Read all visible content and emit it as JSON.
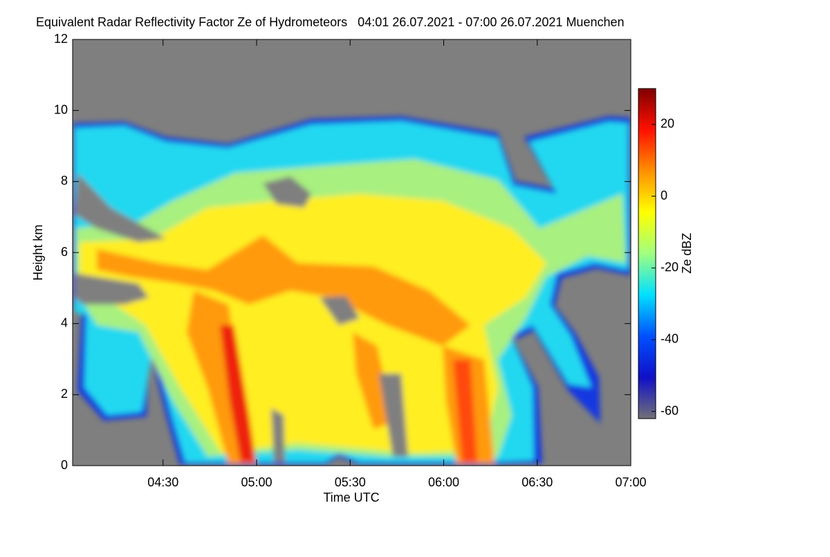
{
  "chart_data": {
    "type": "heatmap",
    "title": "Equivalent Radar Reflectivity Factor Ze of Hydrometeors   04:01 26.07.2021 - 07:00 26.07.2021 Muenchen",
    "xlabel": "Time UTC",
    "ylabel": "Height km",
    "xlim": [
      241,
      420
    ],
    "xticks": [
      {
        "value": 270,
        "label": "04:30"
      },
      {
        "value": 300,
        "label": "05:00"
      },
      {
        "value": 330,
        "label": "05:30"
      },
      {
        "value": 360,
        "label": "06:00"
      },
      {
        "value": 390,
        "label": "06:30"
      },
      {
        "value": 420,
        "label": "07:00"
      }
    ],
    "ylim": [
      0,
      12
    ],
    "yticks": [
      0,
      2,
      4,
      6,
      8,
      10,
      12
    ],
    "colorbar_label": "Ze dBZ",
    "clim": [
      -62,
      30
    ],
    "cticks": [
      -60,
      -40,
      -20,
      0,
      20
    ],
    "colormap": [
      "#707078",
      "#1010c8",
      "#0050ff",
      "#00e0ff",
      "#a0ff80",
      "#ffff00",
      "#ff9000",
      "#ff1000",
      "#800000"
    ],
    "background_color": "#7f7f7f"
  }
}
